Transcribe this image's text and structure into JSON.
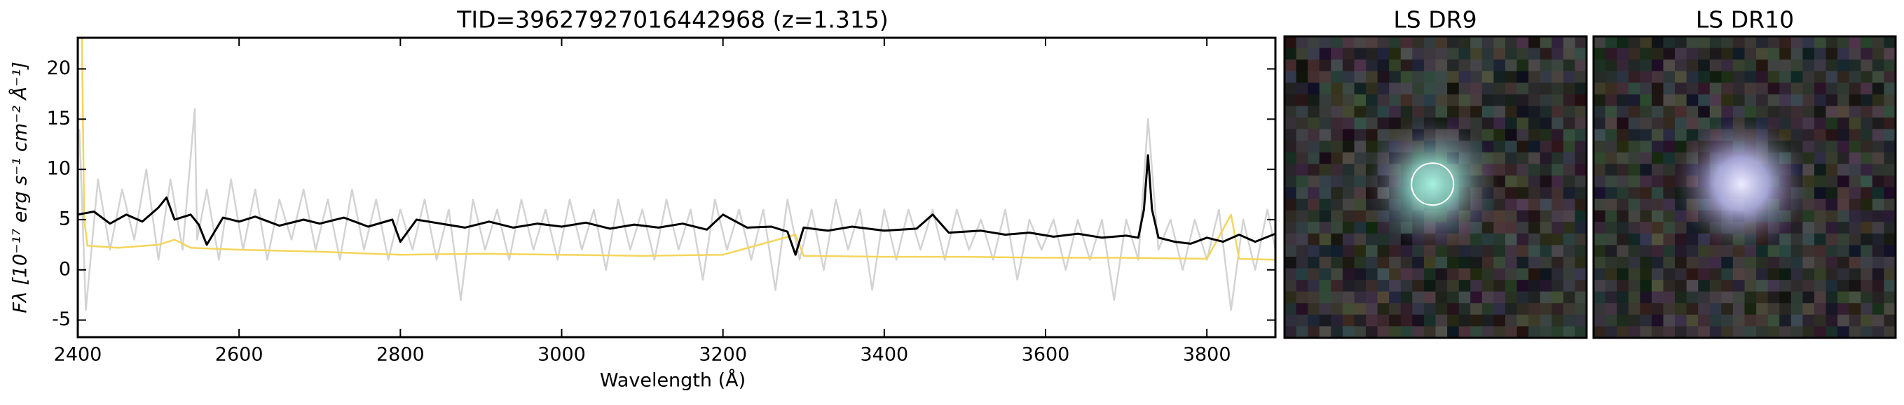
{
  "chart_data": {
    "type": "line",
    "title": "TID=39627927016442968 (z=1.315)",
    "x_label": "Wavelength (Å)",
    "y_label": "Fλ [10⁻¹⁷ erg s⁻¹ cm⁻² Å⁻¹]",
    "xlim": [
      2400,
      3885
    ],
    "ylim": [
      -6.7,
      23.1
    ],
    "xticks": [
      2400,
      2600,
      2800,
      3000,
      3200,
      3400,
      3600,
      3800
    ],
    "yticks": [
      -5,
      0,
      5,
      10,
      15,
      20
    ],
    "series": [
      {
        "color": "#d3d3d3",
        "x": [
          2402,
          2410,
          2425,
          2440,
          2455,
          2470,
          2485,
          2500,
          2515,
          2530,
          2545,
          2548,
          2560,
          2575,
          2590,
          2605,
          2620,
          2635,
          2650,
          2665,
          2680,
          2695,
          2710,
          2725,
          2740,
          2755,
          2770,
          2785,
          2800,
          2815,
          2830,
          2845,
          2860,
          2875,
          2890,
          2905,
          2920,
          2935,
          2950,
          2965,
          2980,
          2995,
          3010,
          3025,
          3040,
          3055,
          3070,
          3085,
          3100,
          3115,
          3130,
          3145,
          3160,
          3175,
          3190,
          3205,
          3220,
          3235,
          3250,
          3265,
          3280,
          3295,
          3310,
          3325,
          3340,
          3355,
          3370,
          3385,
          3400,
          3415,
          3430,
          3445,
          3460,
          3475,
          3490,
          3505,
          3520,
          3535,
          3550,
          3565,
          3580,
          3595,
          3610,
          3625,
          3640,
          3655,
          3670,
          3685,
          3700,
          3715,
          3727,
          3740,
          3755,
          3770,
          3785,
          3800,
          3815,
          3830,
          3845,
          3860,
          3875,
          3885
        ],
        "values": [
          14,
          -4,
          9,
          2,
          8,
          3,
          10,
          1,
          9,
          2,
          16,
          3,
          8,
          1,
          9,
          2,
          8,
          1,
          7,
          3,
          8,
          2,
          7,
          1,
          8,
          2,
          7,
          1,
          6,
          2,
          7,
          1,
          6,
          -3,
          7,
          2,
          6,
          1,
          7,
          2,
          6,
          1,
          7,
          2,
          6,
          0,
          7,
          2,
          6,
          1,
          7,
          2,
          6,
          -1,
          7,
          2,
          6,
          1,
          6,
          -2,
          7,
          1,
          6,
          0,
          7,
          2,
          6,
          -2,
          6,
          1,
          6,
          2,
          6,
          1,
          6,
          2,
          5,
          1,
          6,
          -1,
          5,
          2,
          5,
          0,
          5,
          1,
          5,
          -3,
          5,
          1,
          15,
          2,
          5,
          0,
          5,
          1,
          6,
          -4,
          5,
          0,
          6,
          2
        ]
      },
      {
        "color": "#f5d55a",
        "x": [
          2405,
          2408,
          2412,
          2450,
          2500,
          2520,
          2540,
          2600,
          2700,
          2800,
          2900,
          3000,
          3100,
          3200,
          3290,
          3300,
          3400,
          3500,
          3600,
          3700,
          3800,
          3830,
          3840,
          3885
        ],
        "values": [
          23,
          5,
          2.4,
          2.2,
          2.5,
          3.0,
          2.2,
          2.0,
          1.8,
          1.5,
          1.6,
          1.5,
          1.4,
          1.5,
          3.5,
          1.4,
          1.3,
          1.3,
          1.2,
          1.2,
          1.1,
          5.5,
          1.1,
          1.0
        ]
      },
      {
        "color": "#000000",
        "x": [
          2400,
          2420,
          2440,
          2460,
          2480,
          2500,
          2510,
          2520,
          2540,
          2550,
          2560,
          2580,
          2600,
          2620,
          2650,
          2680,
          2700,
          2730,
          2760,
          2790,
          2800,
          2820,
          2850,
          2880,
          2910,
          2940,
          2970,
          3000,
          3030,
          3060,
          3090,
          3120,
          3150,
          3180,
          3200,
          3230,
          3260,
          3280,
          3290,
          3300,
          3330,
          3360,
          3400,
          3440,
          3460,
          3480,
          3520,
          3550,
          3580,
          3610,
          3640,
          3670,
          3700,
          3715,
          3722,
          3727,
          3732,
          3740,
          3760,
          3780,
          3800,
          3820,
          3840,
          3860,
          3885
        ],
        "values": [
          5.5,
          5.8,
          4.6,
          5.5,
          4.8,
          6.2,
          7.2,
          5.0,
          5.5,
          4.5,
          2.5,
          5.2,
          4.8,
          5.3,
          4.4,
          5.0,
          4.6,
          5.2,
          4.3,
          5.0,
          2.8,
          5.0,
          4.6,
          4.2,
          4.8,
          4.2,
          4.6,
          4.3,
          4.7,
          4.1,
          4.5,
          4.2,
          4.6,
          4.0,
          5.5,
          4.2,
          4.3,
          3.8,
          1.5,
          4.2,
          3.9,
          4.3,
          3.9,
          4.1,
          5.5,
          3.7,
          3.9,
          3.5,
          3.7,
          3.3,
          3.6,
          3.2,
          3.4,
          3.2,
          6,
          11.4,
          6,
          3.2,
          2.8,
          2.6,
          3.2,
          2.8,
          3.5,
          2.8,
          3.6
        ]
      }
    ]
  },
  "panels": [
    {
      "title": "LS DR9"
    },
    {
      "title": "LS DR10"
    }
  ]
}
